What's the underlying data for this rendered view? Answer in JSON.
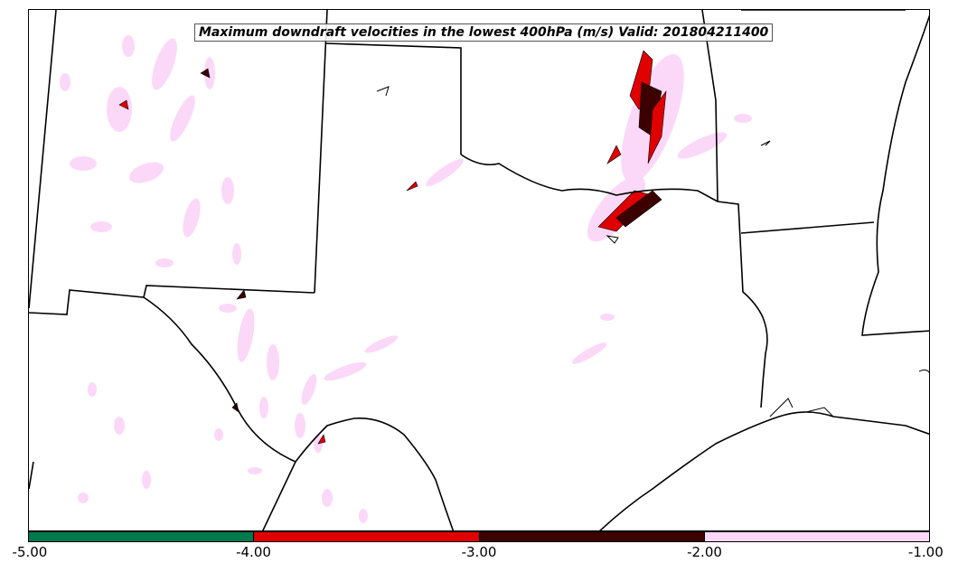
{
  "title": "Maximum downdraft velocities in the lowest 400hPa (m/s) Valid: 201804211400",
  "colorbar": {
    "tick_labels": [
      "-5.00",
      "-4.00",
      "-3.00",
      "-2.00",
      "-1.00"
    ],
    "bins": [
      {
        "range": "-5.00 to -4.00",
        "color": "#007a4d"
      },
      {
        "range": "-4.00 to -3.00",
        "color": "#e00000"
      },
      {
        "range": "-3.00 to -2.00",
        "color": "#3d0000"
      },
      {
        "range": "-2.00 to -1.00",
        "color": "#fbd8f8"
      }
    ]
  },
  "colors": {
    "weak_downdraft": "#fbd8f8",
    "moderate_downdraft": "#e00000",
    "strong_downdraft": "#3d0000",
    "boundary_lines": "#000000"
  }
}
